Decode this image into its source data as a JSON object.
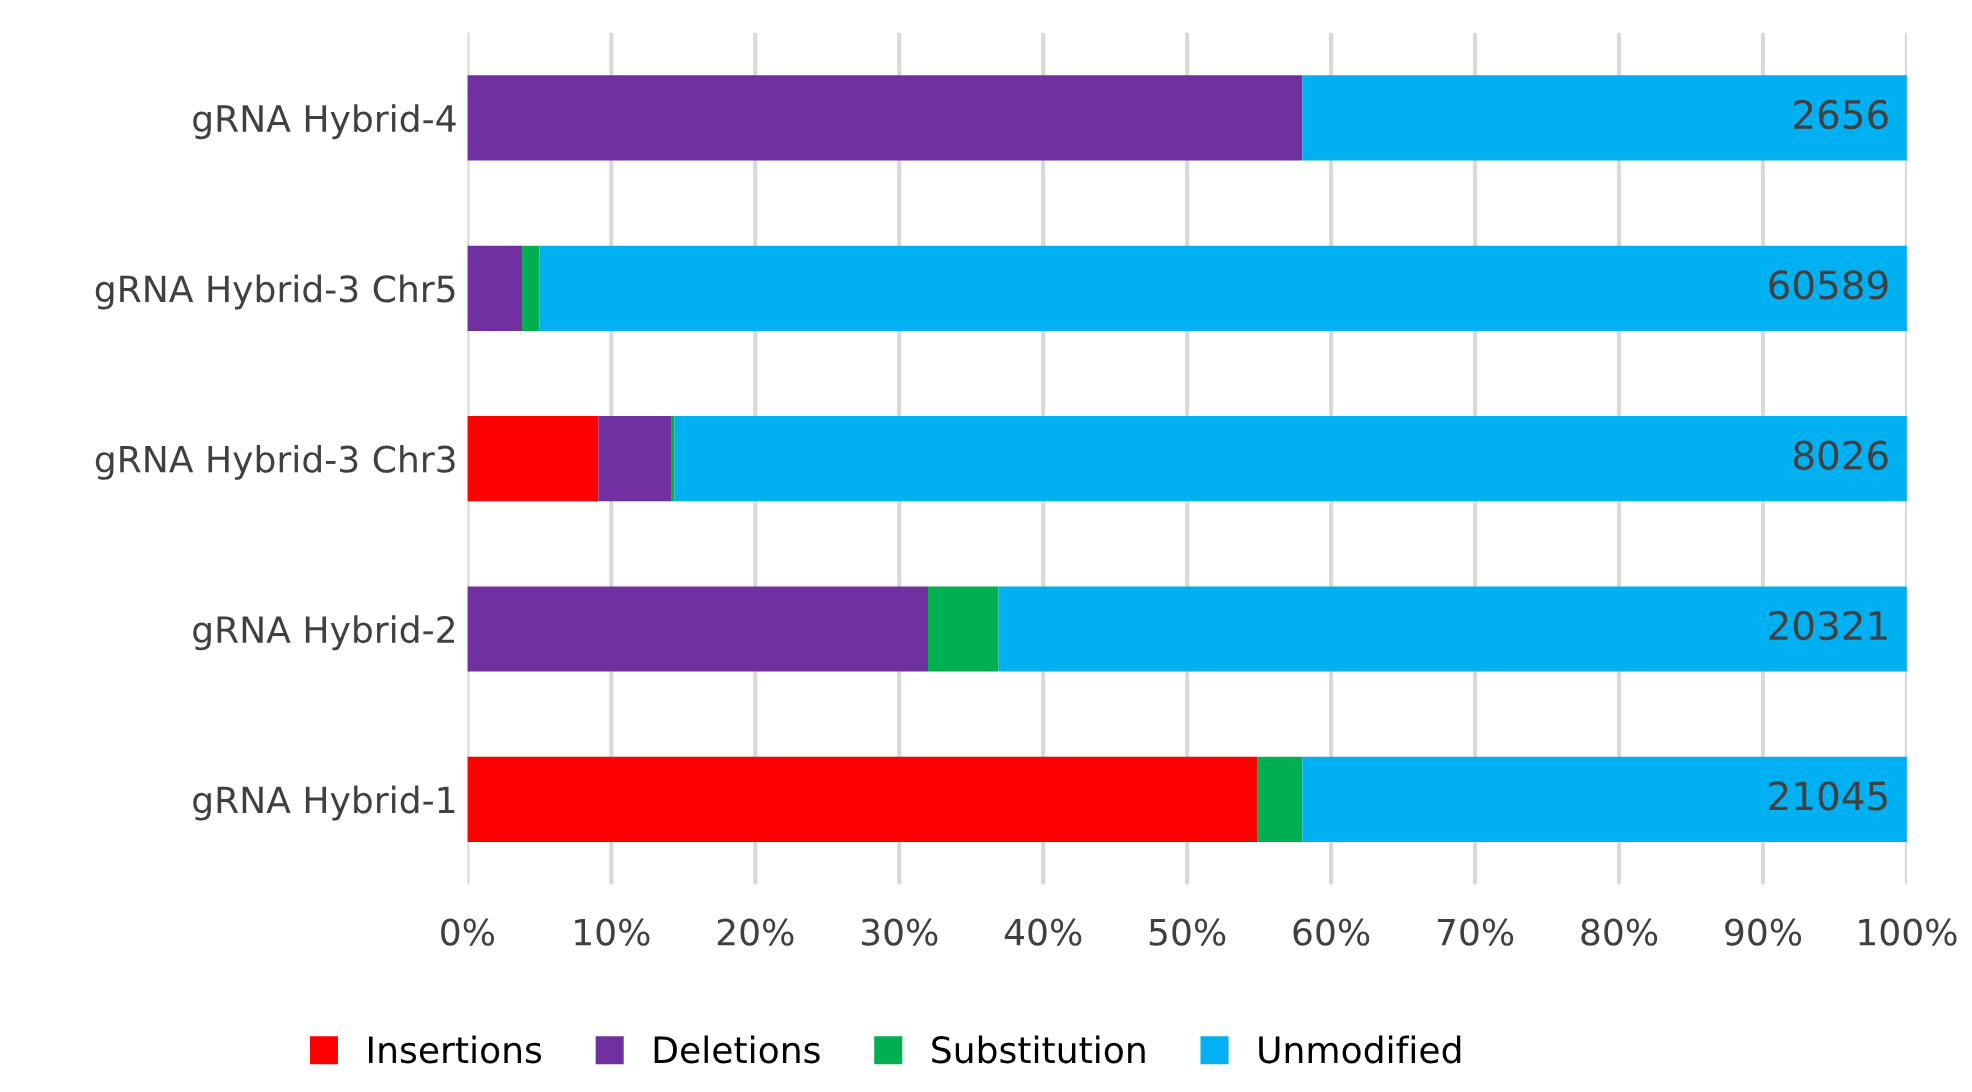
{
  "chart_data": {
    "type": "bar",
    "orientation": "horizontal",
    "stacked": true,
    "categories": [
      "gRNA Hybrid-4",
      "gRNA Hybrid-3 Chr5",
      "gRNA Hybrid-3 Chr3",
      "gRNA Hybrid-2",
      "gRNA Hybrid-1"
    ],
    "series": [
      {
        "name": "Insertions",
        "color": "#ff0000",
        "values": [
          0,
          0,
          9.1,
          0,
          54.9
        ]
      },
      {
        "name": "Deletions",
        "color": "#7030a0",
        "values": [
          58.0,
          3.8,
          5.1,
          32.0,
          0
        ]
      },
      {
        "name": "Substitution",
        "color": "#00b050",
        "values": [
          0,
          1.2,
          0.2,
          4.9,
          3.1
        ]
      },
      {
        "name": "Unmodified",
        "color": "#00b0f0",
        "values": [
          42.0,
          95.0,
          85.6,
          63.1,
          42.0
        ]
      }
    ],
    "annotations": [
      "2656",
      "60589",
      "8026",
      "20321",
      "21045"
    ],
    "xlim": [
      0,
      100
    ],
    "xticks": [
      {
        "value": 0,
        "label": "0%"
      },
      {
        "value": 10,
        "label": "10%"
      },
      {
        "value": 20,
        "label": "20%"
      },
      {
        "value": 30,
        "label": "30%"
      },
      {
        "value": 40,
        "label": "40%"
      },
      {
        "value": 50,
        "label": "50%"
      },
      {
        "value": 60,
        "label": "60%"
      },
      {
        "value": 70,
        "label": "70%"
      },
      {
        "value": 80,
        "label": "80%"
      },
      {
        "value": 90,
        "label": "90%"
      },
      {
        "value": 100,
        "label": "100%"
      }
    ],
    "grid": "x",
    "legend": "bottom"
  }
}
